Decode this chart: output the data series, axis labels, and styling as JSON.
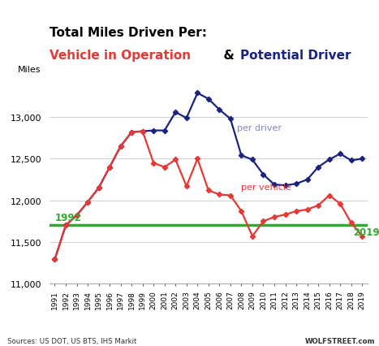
{
  "years": [
    1991,
    1992,
    1993,
    1994,
    1995,
    1996,
    1997,
    1998,
    1999,
    2000,
    2001,
    2002,
    2003,
    2004,
    2005,
    2006,
    2007,
    2008,
    2009,
    2010,
    2011,
    2012,
    2013,
    2014,
    2015,
    2016,
    2017,
    2018,
    2019
  ],
  "per_driver": [
    11290,
    11700,
    11820,
    11980,
    12150,
    12400,
    12650,
    12820,
    12830,
    12840,
    12840,
    13060,
    12990,
    13290,
    13220,
    13090,
    12980,
    12540,
    12490,
    12310,
    12190,
    12180,
    12200,
    12250,
    12400,
    12490,
    12560,
    12480,
    12500
  ],
  "per_vehicle": [
    11290,
    11700,
    11820,
    11980,
    12150,
    12400,
    12650,
    12820,
    12830,
    12450,
    12400,
    12490,
    12170,
    12500,
    12120,
    12070,
    12060,
    11870,
    11570,
    11750,
    11800,
    11830,
    11870,
    11890,
    11940,
    12060,
    11960,
    11730,
    11570
  ],
  "reference_line_value": 11700,
  "title_line1": "Total Miles Driven Per:",
  "title_line2_red": "Vehicle in Operation",
  "title_line2_black": "  &  ",
  "title_line2_blue": "Potential Driver",
  "ylabel": "Miles",
  "ylim": [
    11000,
    13500
  ],
  "yticks": [
    11000,
    11500,
    12000,
    12500,
    13000
  ],
  "driver_color": "#1a237e",
  "vehicle_color": "#e53935",
  "ref_line_color": "#33a832",
  "source_text": "Sources: US DOT, US BTS, IHS Markit",
  "wolfstreet_text": "WOLFSTREET.com",
  "per_driver_label": "per driver",
  "per_vehicle_label": "per vehicle",
  "year_1992_label": "1992",
  "year_2019_label": "2019",
  "background_color": "#ffffff"
}
